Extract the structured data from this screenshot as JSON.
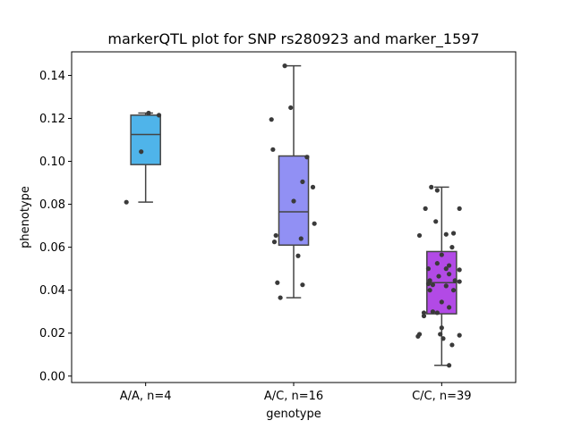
{
  "chart_data": {
    "type": "box",
    "title": "markerQTL plot for SNP rs280923 and marker_1597",
    "xlabel": "genotype",
    "ylabel": "phenotype",
    "ylim": [
      -0.003,
      0.151
    ],
    "yticks": [
      "0.00",
      "0.02",
      "0.04",
      "0.06",
      "0.08",
      "0.10",
      "0.12",
      "0.14"
    ],
    "categories": [
      "A/A, n=4",
      "A/C, n=16",
      "C/C, n=39"
    ],
    "colors": [
      "#4fb4ea",
      "#9190f4",
      "#b24ae6"
    ],
    "boxes": [
      {
        "whisker_low": 0.081,
        "q1": 0.0985,
        "median": 0.1125,
        "q3": 0.1215,
        "whisker_high": 0.1225
      },
      {
        "whisker_low": 0.0365,
        "q1": 0.061,
        "median": 0.0765,
        "q3": 0.1025,
        "whisker_high": 0.1445
      },
      {
        "whisker_low": 0.005,
        "q1": 0.029,
        "median": 0.0435,
        "q3": 0.058,
        "whisker_high": 0.088
      }
    ],
    "points": [
      [
        [
          -0.13,
          0.081
        ],
        [
          -0.03,
          0.1045
        ],
        [
          0.02,
          0.1225
        ],
        [
          0.09,
          0.1215
        ]
      ],
      [
        [
          -0.06,
          0.1445
        ],
        [
          -0.02,
          0.125
        ],
        [
          -0.15,
          0.1195
        ],
        [
          -0.14,
          0.1055
        ],
        [
          0.09,
          0.102
        ],
        [
          0.06,
          0.0905
        ],
        [
          0.13,
          0.088
        ],
        [
          0.0,
          0.0815
        ],
        [
          0.14,
          0.071
        ],
        [
          -0.12,
          0.0655
        ],
        [
          0.05,
          0.064
        ],
        [
          -0.13,
          0.0625
        ],
        [
          0.03,
          0.056
        ],
        [
          -0.11,
          0.0435
        ],
        [
          0.06,
          0.0425
        ],
        [
          -0.09,
          0.0365
        ]
      ],
      [
        [
          -0.07,
          0.088
        ],
        [
          -0.03,
          0.0865
        ],
        [
          0.12,
          0.078
        ],
        [
          -0.11,
          0.078
        ],
        [
          -0.04,
          0.072
        ],
        [
          0.08,
          0.0665
        ],
        [
          0.03,
          0.066
        ],
        [
          -0.15,
          0.0655
        ],
        [
          0.07,
          0.06
        ],
        [
          0.0,
          0.0565
        ],
        [
          -0.03,
          0.0525
        ],
        [
          0.05,
          0.0515
        ],
        [
          0.03,
          0.05
        ],
        [
          -0.09,
          0.05
        ],
        [
          0.12,
          0.0495
        ],
        [
          0.05,
          0.0475
        ],
        [
          -0.02,
          0.0465
        ],
        [
          -0.08,
          0.0445
        ],
        [
          0.09,
          0.0445
        ],
        [
          0.12,
          0.044
        ],
        [
          -0.09,
          0.043
        ],
        [
          -0.06,
          0.0425
        ],
        [
          0.03,
          0.042
        ],
        [
          0.08,
          0.04
        ],
        [
          -0.08,
          0.04
        ],
        [
          0.0,
          0.0345
        ],
        [
          0.05,
          0.032
        ],
        [
          -0.06,
          0.03
        ],
        [
          -0.12,
          0.0295
        ],
        [
          -0.03,
          0.0295
        ],
        [
          -0.12,
          0.028
        ],
        [
          0.0,
          0.0225
        ],
        [
          -0.01,
          0.0195
        ],
        [
          -0.15,
          0.0195
        ],
        [
          -0.16,
          0.0185
        ],
        [
          0.12,
          0.019
        ],
        [
          0.01,
          0.0175
        ],
        [
          0.07,
          0.0145
        ],
        [
          0.05,
          0.005
        ]
      ]
    ]
  }
}
